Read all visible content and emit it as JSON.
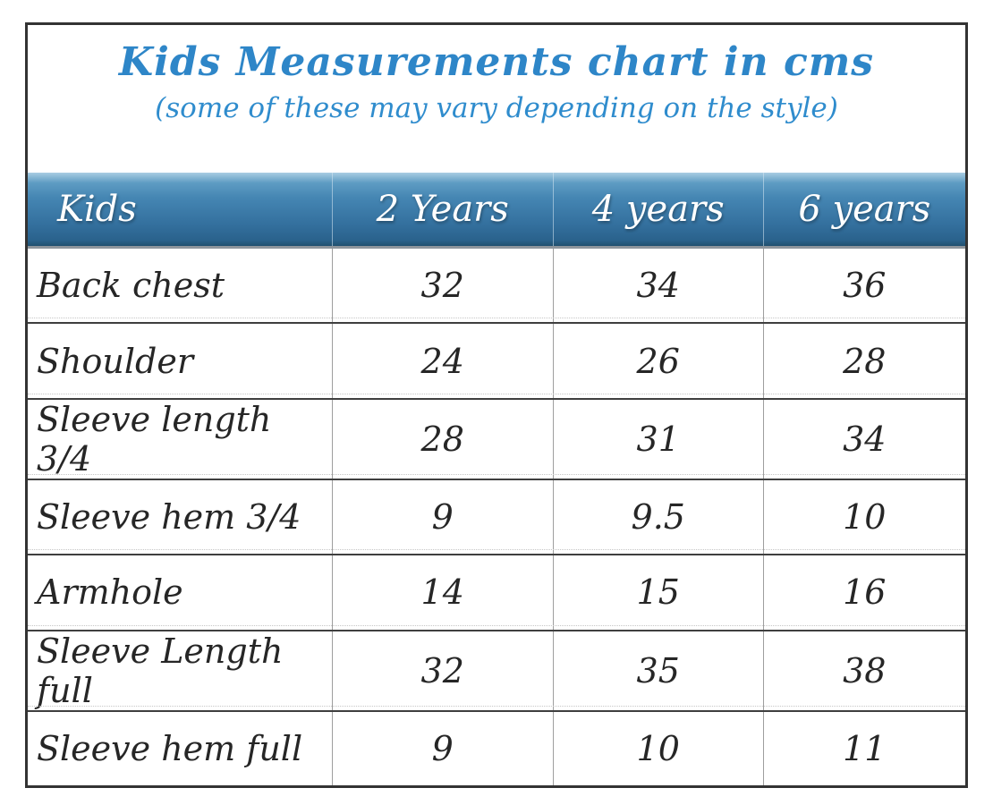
{
  "chart_data": {
    "type": "table",
    "title": "Kids Measurements chart in cms",
    "subtitle": "(some of these may vary depending on the style)",
    "columns": [
      "Kids",
      "2 Years",
      "4 years",
      "6 years"
    ],
    "rows": [
      {
        "label": "Back chest",
        "values": [
          32,
          34,
          36
        ]
      },
      {
        "label": "Shoulder",
        "values": [
          24,
          26,
          28
        ]
      },
      {
        "label": "Sleeve length 3/4",
        "values": [
          28,
          31,
          34
        ]
      },
      {
        "label": "Sleeve hem 3/4",
        "values": [
          9,
          9.5,
          10
        ]
      },
      {
        "label": "Armhole",
        "values": [
          14,
          15,
          16
        ]
      },
      {
        "label": "Sleeve Length full",
        "values": [
          32,
          35,
          38
        ]
      },
      {
        "label": "Sleeve hem full",
        "values": [
          9,
          10,
          11
        ]
      }
    ]
  },
  "colors": {
    "title_text": "#2e86c8",
    "subtitle_text": "#2f8ccd",
    "header_text": "#ffffff",
    "header_gradient_top": "#a9cde2",
    "header_gradient_upper": "#5e9cc3",
    "header_gradient_lower": "#336f9d",
    "header_gradient_bottom": "#20506f",
    "header_shadow": "#8e959c",
    "body_text": "#262626",
    "row_separator": "#3f3f3f",
    "row_separator_dotted": "#c6c6c6",
    "column_divider": "#9e9e9e",
    "outer_border": "#333333"
  }
}
